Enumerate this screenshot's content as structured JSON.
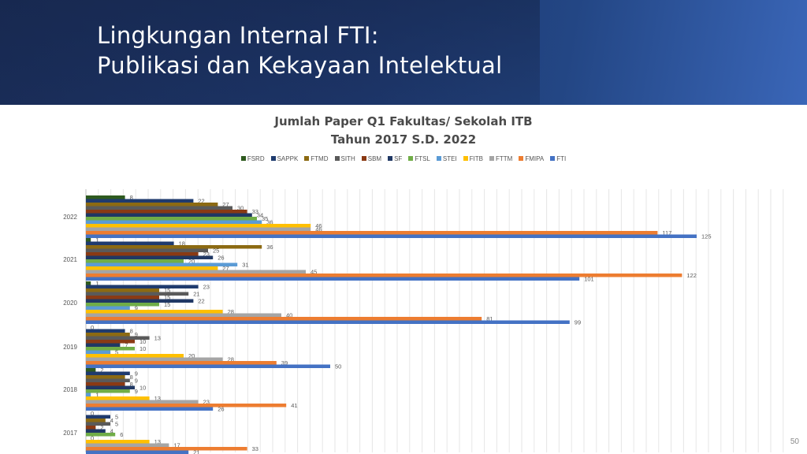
{
  "slide": {
    "title_line1": "Lingkungan Internal FTI:",
    "title_line2": "Publikasi dan Kekayaan Intelektual",
    "page_number": "50"
  },
  "chart_data": {
    "type": "bar",
    "orientation": "horizontal",
    "title_line1": "Jumlah Paper Q1 Fakultas/ Sekolah ITB",
    "title_line2": "Tahun 2017 S.D. 2022",
    "categories": [
      "2022",
      "2021",
      "2020",
      "2019",
      "2018",
      "2017"
    ],
    "legend_position": "top",
    "grid": true,
    "xlim": [
      0,
      130
    ],
    "series": [
      {
        "name": "FSRD",
        "color": "#2e5a1f",
        "values": [
          8,
          1,
          1,
          0,
          2,
          0
        ]
      },
      {
        "name": "SAPPK",
        "color": "#1f3b6e",
        "values": [
          22,
          18,
          23,
          8,
          9,
          5
        ]
      },
      {
        "name": "FTMD",
        "color": "#8c6a12",
        "values": [
          27,
          36,
          15,
          9,
          8,
          4
        ]
      },
      {
        "name": "SITH",
        "color": "#5a5a5a",
        "values": [
          30,
          25,
          21,
          13,
          9,
          5
        ]
      },
      {
        "name": "SBM",
        "color": "#8a3a14",
        "values": [
          33,
          23,
          15,
          10,
          8,
          2
        ]
      },
      {
        "name": "SF",
        "color": "#203864",
        "values": [
          34,
          26,
          22,
          7,
          10,
          4
        ]
      },
      {
        "name": "FTSL",
        "color": "#70ad47",
        "values": [
          35,
          20,
          15,
          10,
          9,
          6
        ]
      },
      {
        "name": "STEI",
        "color": "#5b9bd5",
        "values": [
          36,
          31,
          9,
          5,
          1,
          0
        ]
      },
      {
        "name": "FITB",
        "color": "#ffc000",
        "values": [
          46,
          27,
          28,
          20,
          13,
          13
        ]
      },
      {
        "name": "FTTM",
        "color": "#a5a5a5",
        "values": [
          46,
          45,
          40,
          28,
          23,
          17
        ]
      },
      {
        "name": "FMIPA",
        "color": "#ed7d31",
        "values": [
          117,
          122,
          81,
          39,
          41,
          33
        ]
      },
      {
        "name": "FTI",
        "color": "#4472c4",
        "values": [
          125,
          101,
          99,
          50,
          26,
          21
        ]
      }
    ]
  }
}
